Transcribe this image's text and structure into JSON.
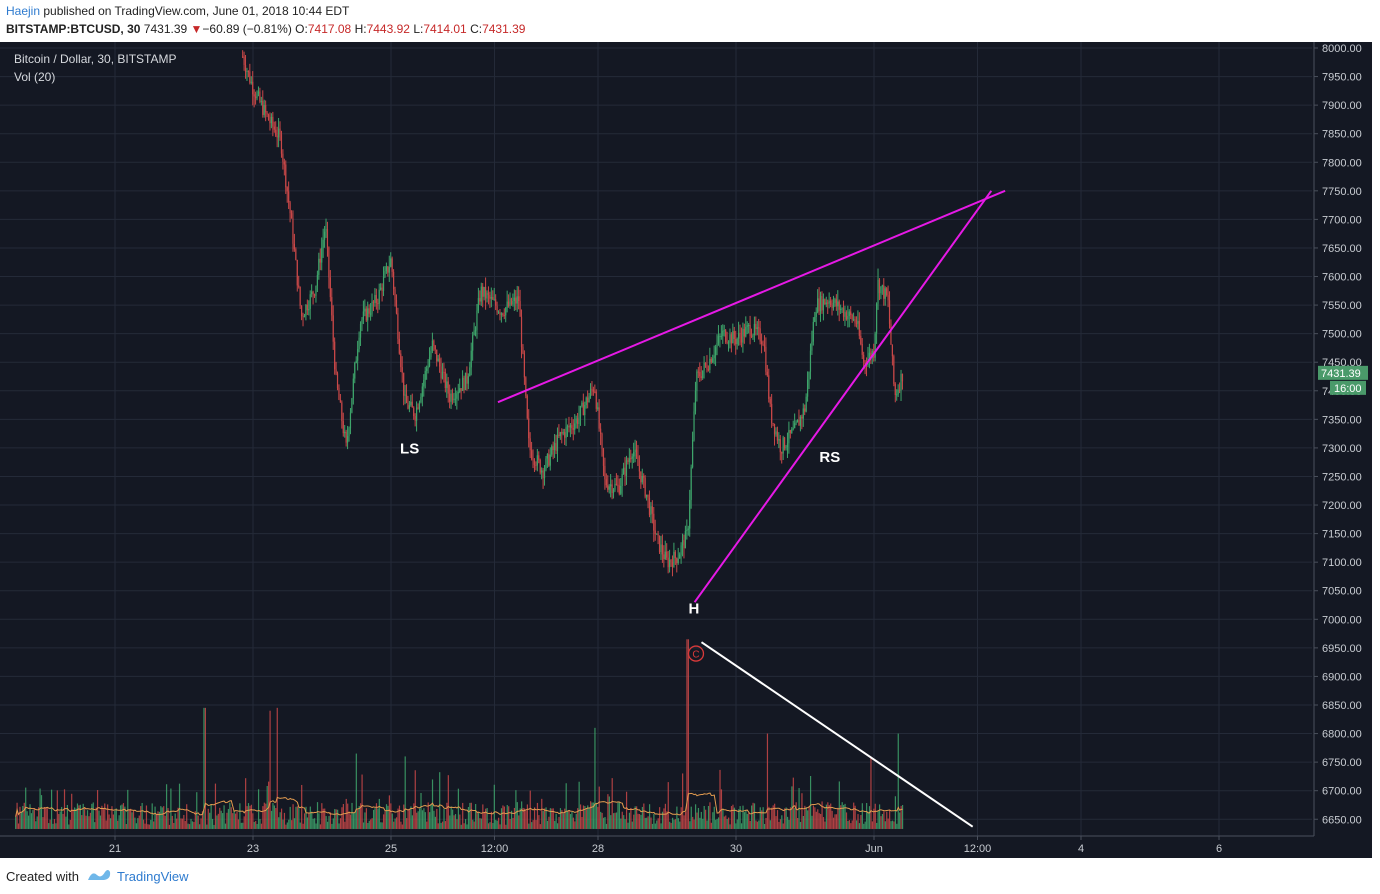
{
  "header": {
    "author": "Haejin",
    "published": " published on TradingView.com, June 01, 2018 10:44 EDT",
    "symbol": "BITSTAMP:BTCUSD, 30",
    "last": "7431.39",
    "change": "−60.89 (−0.81%)",
    "o_label": "O:",
    "o": "7417.08",
    "h_label": "H:",
    "h": "7443.92",
    "l_label": "L:",
    "l": "7414.01",
    "c_label": "C:",
    "c": "7431.39"
  },
  "legend": {
    "title": "Bitcoin / Dollar, 30, BITSTAMP",
    "volume": "Vol (20)"
  },
  "footer": {
    "created_with": "Created with",
    "brand": "TradingView"
  },
  "colors": {
    "background": "#141823",
    "grid": "#242a38",
    "up": "#3ea56b",
    "down": "#c94848",
    "trendline": "#e619e6",
    "volume_line": "#e29b4f",
    "annotation_line": "#ffffff",
    "price_badge": "#4a9a6a"
  },
  "chart_data": {
    "type": "candlestick",
    "title": "Bitcoin / Dollar, 30, BITSTAMP",
    "interval": "30",
    "ylim": [
      6615,
      8005
    ],
    "y_ticks": [
      "8000.00",
      "7950.00",
      "7900.00",
      "7850.00",
      "7800.00",
      "7750.00",
      "7700.00",
      "7650.00",
      "7600.00",
      "7550.00",
      "7500.00",
      "7450.00",
      "7400.00",
      "7350.00",
      "7300.00",
      "7250.00",
      "7200.00",
      "7150.00",
      "7100.00",
      "7050.00",
      "7000.00",
      "6950.00",
      "6900.00",
      "6850.00",
      "6800.00",
      "6750.00",
      "6700.00",
      "6650.00"
    ],
    "x_ticks": [
      {
        "label": "21",
        "day": 21
      },
      {
        "label": "23",
        "day": 23
      },
      {
        "label": "25",
        "day": 25
      },
      {
        "label": "12:00",
        "day": 26.5
      },
      {
        "label": "28",
        "day": 28
      },
      {
        "label": "30",
        "day": 30
      },
      {
        "label": "Jun",
        "day": 32
      },
      {
        "label": "12:00",
        "day": 33.5
      },
      {
        "label": "4",
        "day": 35
      },
      {
        "label": "6",
        "day": 37
      }
    ],
    "x_domain_days": [
      19.54,
      38.52
    ],
    "price_path": [
      {
        "day": 22.85,
        "price": 7985
      },
      {
        "day": 23.0,
        "price": 7930
      },
      {
        "day": 23.2,
        "price": 7880
      },
      {
        "day": 23.4,
        "price": 7840
      },
      {
        "day": 23.55,
        "price": 7700
      },
      {
        "day": 23.7,
        "price": 7530
      },
      {
        "day": 23.9,
        "price": 7580
      },
      {
        "day": 24.05,
        "price": 7690
      },
      {
        "day": 24.2,
        "price": 7420
      },
      {
        "day": 24.35,
        "price": 7300
      },
      {
        "day": 24.55,
        "price": 7520
      },
      {
        "day": 24.8,
        "price": 7560
      },
      {
        "day": 25.0,
        "price": 7630
      },
      {
        "day": 25.2,
        "price": 7380
      },
      {
        "day": 25.35,
        "price": 7360
      },
      {
        "day": 25.6,
        "price": 7480
      },
      {
        "day": 25.85,
        "price": 7390
      },
      {
        "day": 26.1,
        "price": 7420
      },
      {
        "day": 26.3,
        "price": 7575
      },
      {
        "day": 26.6,
        "price": 7540
      },
      {
        "day": 26.85,
        "price": 7560
      },
      {
        "day": 27.0,
        "price": 7300
      },
      {
        "day": 27.2,
        "price": 7260
      },
      {
        "day": 27.45,
        "price": 7320
      },
      {
        "day": 27.7,
        "price": 7350
      },
      {
        "day": 27.95,
        "price": 7410
      },
      {
        "day": 28.1,
        "price": 7240
      },
      {
        "day": 28.3,
        "price": 7230
      },
      {
        "day": 28.5,
        "price": 7300
      },
      {
        "day": 28.7,
        "price": 7220
      },
      {
        "day": 28.85,
        "price": 7140
      },
      {
        "day": 29.0,
        "price": 7100
      },
      {
        "day": 29.15,
        "price": 7110
      },
      {
        "day": 29.3,
        "price": 7150
      },
      {
        "day": 29.42,
        "price": 7420
      },
      {
        "day": 29.6,
        "price": 7450
      },
      {
        "day": 29.8,
        "price": 7500
      },
      {
        "day": 30.0,
        "price": 7490
      },
      {
        "day": 30.2,
        "price": 7510
      },
      {
        "day": 30.4,
        "price": 7490
      },
      {
        "day": 30.5,
        "price": 7360
      },
      {
        "day": 30.65,
        "price": 7300
      },
      {
        "day": 30.85,
        "price": 7330
      },
      {
        "day": 31.0,
        "price": 7370
      },
      {
        "day": 31.15,
        "price": 7550
      },
      {
        "day": 31.35,
        "price": 7560
      },
      {
        "day": 31.55,
        "price": 7540
      },
      {
        "day": 31.75,
        "price": 7520
      },
      {
        "day": 31.85,
        "price": 7450
      },
      {
        "day": 32.0,
        "price": 7470
      },
      {
        "day": 32.05,
        "price": 7590
      },
      {
        "day": 32.2,
        "price": 7560
      },
      {
        "day": 32.3,
        "price": 7390
      },
      {
        "day": 32.42,
        "price": 7431.39
      }
    ],
    "volume_peaks": [
      {
        "day": 22.3,
        "volume": 6845
      },
      {
        "day": 23.25,
        "volume": 6840
      },
      {
        "day": 23.35,
        "volume": 6845
      },
      {
        "day": 24.5,
        "volume": 6765
      },
      {
        "day": 25.2,
        "volume": 6760
      },
      {
        "day": 27.95,
        "volume": 6810
      },
      {
        "day": 29.3,
        "volume": 6965
      },
      {
        "day": 30.45,
        "volume": 6800
      },
      {
        "day": 31.95,
        "volume": 6760
      },
      {
        "day": 32.35,
        "volume": 6800
      }
    ],
    "trendlines": [
      {
        "name": "upper",
        "color": "#e619e6",
        "from": {
          "day": 26.55,
          "price": 7380
        },
        "to": {
          "day": 33.9,
          "price": 7750
        }
      },
      {
        "name": "lower",
        "color": "#e619e6",
        "from": {
          "day": 29.4,
          "price": 7030
        },
        "to": {
          "day": 33.7,
          "price": 7750
        }
      },
      {
        "name": "volume",
        "color": "#ffffff",
        "from": {
          "day": 29.5,
          "price": 6960
        },
        "to": {
          "day": 33.43,
          "price": 6637
        }
      }
    ],
    "annotations": [
      {
        "text": "LS",
        "day": 25.27,
        "price": 7290
      },
      {
        "text": "H",
        "day": 29.39,
        "price": 7010
      },
      {
        "text": "RS",
        "day": 31.36,
        "price": 7275
      }
    ],
    "event_marker": {
      "text": "C",
      "day": 29.42,
      "price": 6940
    },
    "last_price": {
      "value": "7431.39",
      "countdown": "16:00"
    }
  }
}
